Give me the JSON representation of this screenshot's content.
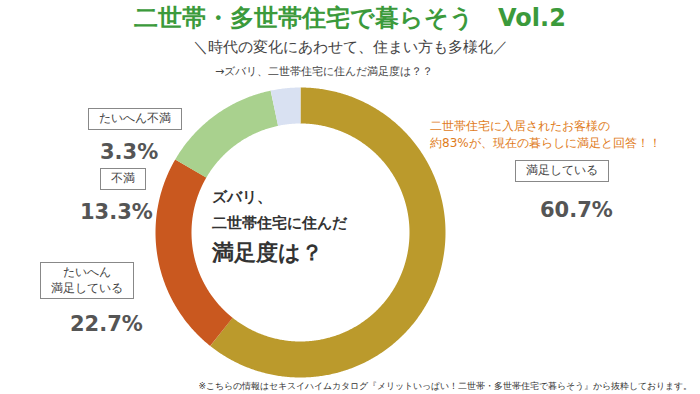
{
  "chart_data": {
    "type": "pie",
    "title": "二世帯・多世帯住宅で暮らそう　Vol.2",
    "subtitle": "＼時代の変化にあわせて、住まい方も多様化／",
    "question": "→ズバリ、二世帯住宅に住んだ満足度は？？",
    "center_label": [
      "ズバリ、",
      "二世帯住宅に住んだ",
      "満足度は？"
    ],
    "callout": "二世帯住宅に入居されたお客様の\n約83%が、現在の暮らしに満足と回答！！",
    "footnote": "※こちらの情報はセキスイハイムカタログ『メリットいっぱい！二世帯・多世帯住宅で暮らそう』から抜粋しております。",
    "categories": [
      "満足している",
      "たいへん\n満足している",
      "不満",
      "たいへん不満"
    ],
    "values": [
      60.7,
      22.7,
      13.3,
      3.3
    ],
    "value_labels": [
      "60.7%",
      "22.7%",
      "13.3%",
      "3.3%"
    ],
    "colors": [
      "#bb9a2c",
      "#c9581f",
      "#a9d18e",
      "#d9e1f2"
    ],
    "data_labels": true
  }
}
